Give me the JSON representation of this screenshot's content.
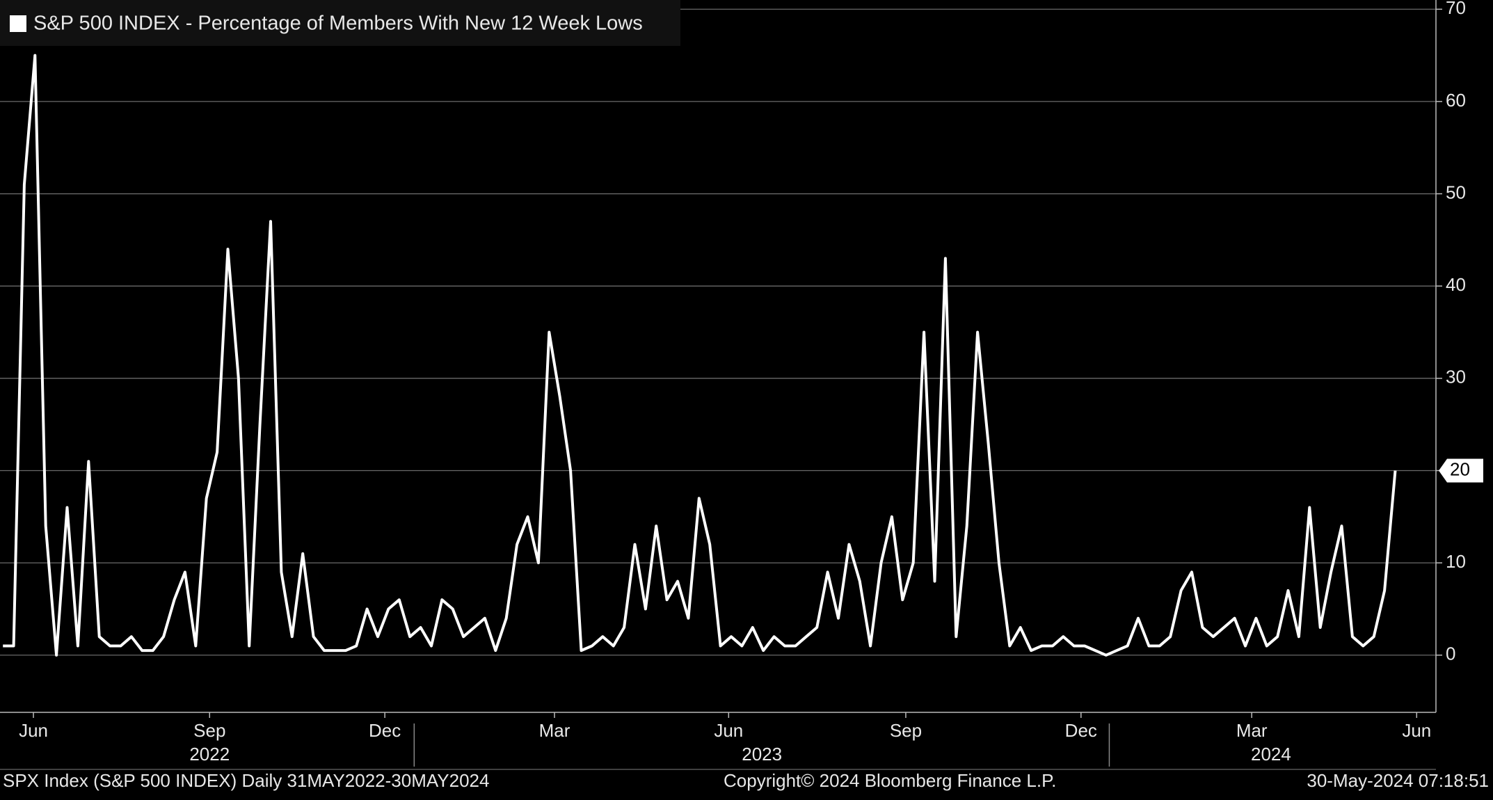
{
  "chart_data": {
    "type": "line",
    "series": [
      {
        "name": "S&P 500 INDEX - Percentage of Members With New 12 Week Lows",
        "color": "#ffffff",
        "values": [
          1,
          1,
          51,
          65,
          14,
          0,
          16,
          1,
          21,
          2,
          1,
          1,
          2,
          0.5,
          0.5,
          2,
          6,
          9,
          1,
          17,
          22,
          44,
          30,
          1,
          25,
          47,
          9,
          2,
          11,
          2,
          0.5,
          0.5,
          0.5,
          1,
          5,
          2,
          5,
          6,
          2,
          3,
          1,
          6,
          5,
          2,
          3,
          4,
          0.5,
          4,
          12,
          15,
          10,
          35,
          28,
          20,
          0.5,
          1,
          2,
          1,
          3,
          12,
          5,
          14,
          6,
          8,
          4,
          17,
          12,
          1,
          2,
          1,
          3,
          0.5,
          2,
          1,
          1,
          2,
          3,
          9,
          4,
          12,
          8,
          1,
          10,
          15,
          6,
          10,
          35,
          8,
          43,
          2,
          14,
          35,
          23,
          10,
          1,
          3,
          0.5,
          1,
          1,
          2,
          1,
          1,
          0.5,
          0,
          0.5,
          1,
          4,
          1,
          1,
          2,
          7,
          9,
          3,
          2,
          3,
          4,
          1,
          4,
          1,
          2,
          7,
          2,
          16,
          3,
          9,
          14,
          2,
          1,
          2,
          7,
          20
        ]
      }
    ],
    "xlim": [
      -0.27,
      133.8
    ],
    "xticks": [
      {
        "value": 2.85,
        "label": "Jun"
      },
      {
        "value": 19.3,
        "label": "Sep"
      },
      {
        "value": 35.66,
        "label": "Dec"
      },
      {
        "value": 51.5,
        "label": "Mar"
      },
      {
        "value": 67.76,
        "label": "Jun"
      },
      {
        "value": 84.3,
        "label": "Sep"
      },
      {
        "value": 100.66,
        "label": "Dec"
      },
      {
        "value": 116.6,
        "label": "Mar"
      },
      {
        "value": 132,
        "label": "Jun"
      }
    ],
    "xgroups": [
      {
        "value": 19.3,
        "label": "2022"
      },
      {
        "value": 70.87,
        "label": "2023"
      },
      {
        "value": 118.4,
        "label": "2024"
      }
    ],
    "xgroup_separators": [
      38.4,
      103.3
    ],
    "ylim": [
      -6.2,
      71
    ],
    "yticks": [
      0,
      10,
      20,
      30,
      40,
      50,
      60,
      70
    ],
    "grid": true,
    "footer_left": "SPX Index (S&P 500 INDEX)  Daily 31MAY2022-30MAY2024",
    "footer_center": "Copyright© 2024 Bloomberg Finance L.P.",
    "footer_right": "30-May-2024 07:18:51"
  }
}
